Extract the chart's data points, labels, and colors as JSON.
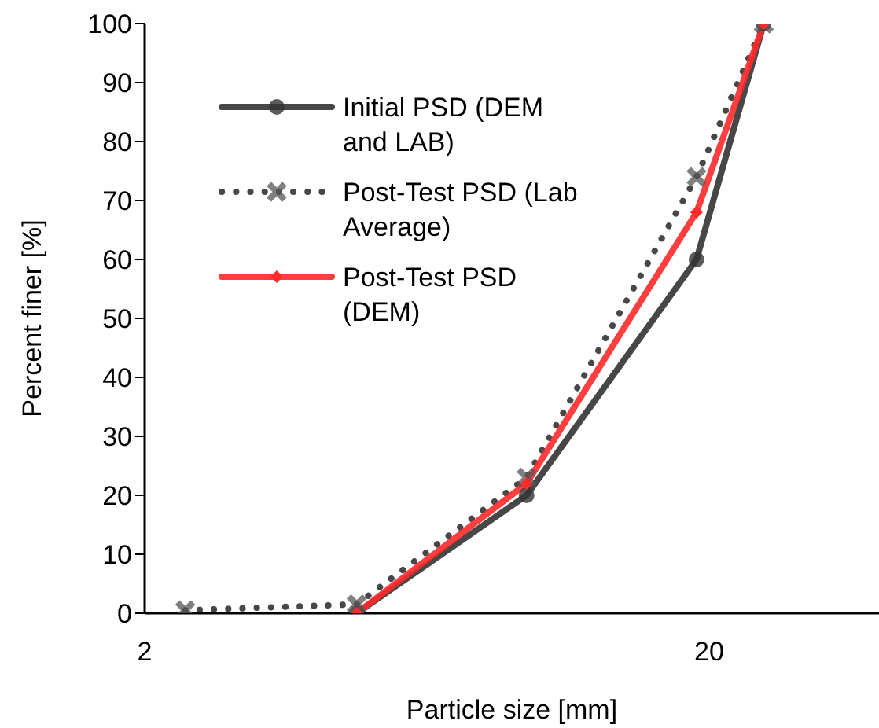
{
  "chart_data": {
    "type": "line",
    "xlabel": "Particle size [mm]",
    "ylabel": "Percent finer [%]",
    "log": "x",
    "xlim": [
      2,
      40
    ],
    "xticks": [
      2,
      20
    ],
    "ylim": [
      0,
      100
    ],
    "yticks": [
      0,
      10,
      20,
      30,
      40,
      50,
      60,
      70,
      80,
      90,
      100
    ],
    "grid": false,
    "legend": "top left",
    "series": [
      {
        "name": "Initial PSD (DEM and LAB)",
        "color": "#333333",
        "marker": "circle",
        "line_style": "solid",
        "x": [
          4.75,
          9.5,
          19,
          25
        ],
        "values": [
          0,
          20,
          60,
          100
        ]
      },
      {
        "name": "Post-Test PSD (Lab Average)",
        "color": "#333333",
        "marker": "cross",
        "line_style": "dotted",
        "x": [
          2.36,
          4.75,
          9.5,
          19,
          25
        ],
        "values": [
          0.5,
          1.5,
          23,
          74,
          100
        ]
      },
      {
        "name": "Post-Test PSD (DEM)",
        "color": "#ff2a2a",
        "marker": "diamond",
        "line_style": "solid",
        "x": [
          4.75,
          9.5,
          19,
          25
        ],
        "values": [
          0,
          22,
          68,
          100
        ]
      }
    ]
  }
}
